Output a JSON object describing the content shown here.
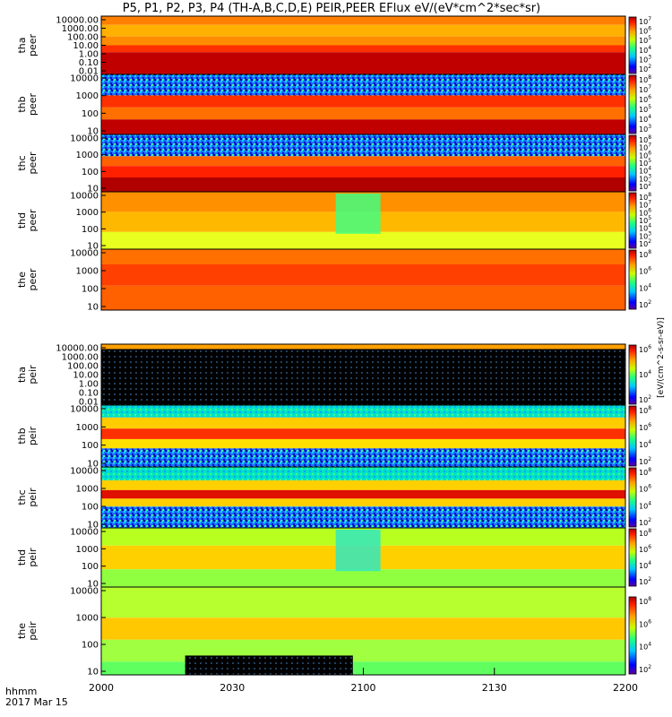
{
  "title": "P5, P1, P2, P3, P4 (TH-A,B,C,D,E) PEIR,PEER EFlux eV/(eV*cm^2*sec*sr)",
  "time_axis": {
    "unit_label": "hhmm",
    "date_label": "2017 Mar 15",
    "ticks": [
      "2000",
      "2030",
      "2100",
      "2130",
      "2200"
    ]
  },
  "colorbar_label": "[eV/(cm^2-s-sr-eV)]",
  "chart_data": [
    {
      "type": "heatmap",
      "probe": "tha",
      "species": "peer",
      "ylabel": "tha\npeer",
      "yticks": [
        "10000.00",
        "1000.00",
        "100.00",
        "10.00",
        "1.00",
        "0.10",
        "0.01"
      ],
      "cbar_ticks": [
        "10^7",
        "10^6",
        "10^5",
        "10^4",
        "10^3",
        "10^2"
      ]
    },
    {
      "type": "heatmap",
      "probe": "thb",
      "species": "peer",
      "ylabel": "thb\npeer",
      "yticks": [
        "10000",
        "1000",
        "100",
        "10"
      ],
      "cbar_ticks": [
        "10^8",
        "10^7",
        "10^6",
        "10^5",
        "10^4",
        "10^3"
      ]
    },
    {
      "type": "heatmap",
      "probe": "thc",
      "species": "peer",
      "ylabel": "thc\npeer",
      "yticks": [
        "10000",
        "1000",
        "100",
        "10"
      ],
      "cbar_ticks": [
        "10^8",
        "10^7",
        "10^6",
        "10^5",
        "10^4",
        "10^3",
        "10^2"
      ]
    },
    {
      "type": "heatmap",
      "probe": "thd",
      "species": "peer",
      "ylabel": "thd\npeer",
      "yticks": [
        "10000",
        "1000",
        "100",
        "10"
      ],
      "cbar_ticks": [
        "10^8",
        "10^7",
        "10^6",
        "10^5",
        "10^4",
        "10^3",
        "10^2"
      ]
    },
    {
      "type": "heatmap",
      "probe": "the",
      "species": "peer",
      "ylabel": "the\npeer",
      "yticks": [
        "10000",
        "1000",
        "100",
        "10"
      ],
      "cbar_ticks": [
        "10^8",
        "10^6",
        "10^4",
        "10^2"
      ]
    },
    {
      "type": "heatmap",
      "probe": "tha",
      "species": "peir",
      "ylabel": "tha\npeir",
      "yticks": [
        "10000.00",
        "1000.00",
        "100.00",
        "10.00",
        "1.00",
        "0.10",
        "0.01"
      ],
      "cbar_ticks": [
        "10^6",
        "10^4",
        "10^2"
      ]
    },
    {
      "type": "heatmap",
      "probe": "thb",
      "species": "peir",
      "ylabel": "thb\npeir",
      "yticks": [
        "10000",
        "1000",
        "100",
        "10"
      ],
      "cbar_ticks": [
        "10^8",
        "10^6",
        "10^4",
        "10^2"
      ]
    },
    {
      "type": "heatmap",
      "probe": "thc",
      "species": "peir",
      "ylabel": "thc\npeir",
      "yticks": [
        "10000",
        "1000",
        "100",
        "10"
      ],
      "cbar_ticks": [
        "10^8",
        "10^6",
        "10^4",
        "10^2"
      ]
    },
    {
      "type": "heatmap",
      "probe": "thd",
      "species": "peir",
      "ylabel": "thd\npeir",
      "yticks": [
        "10000",
        "1000",
        "100",
        "10"
      ],
      "cbar_ticks": [
        "10^8",
        "10^6",
        "10^4",
        "10^2"
      ]
    },
    {
      "type": "heatmap",
      "probe": "the",
      "species": "peir",
      "ylabel": "the\npeir",
      "yticks": [
        "10000",
        "1000",
        "100",
        "10"
      ],
      "cbar_ticks": [
        "10^8",
        "10^6",
        "10^4",
        "10^2"
      ]
    }
  ]
}
